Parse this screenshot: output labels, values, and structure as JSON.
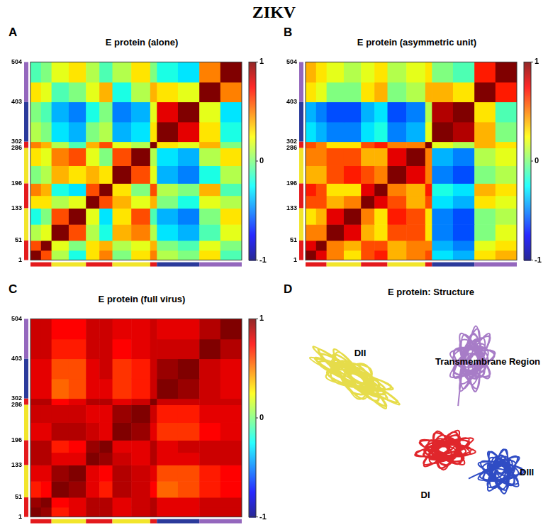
{
  "title": "ZIKV",
  "chart_data": [
    {
      "label": "A",
      "type": "heatmap",
      "title": "E protein (alone)",
      "bin_edges": [
        1,
        26,
        51,
        92,
        133,
        165,
        196,
        241,
        286,
        302,
        352,
        403,
        453,
        504
      ],
      "cells": [
        [
          1,
          0.6,
          0.1,
          -0.2,
          0.3,
          0.5,
          0.0,
          0.3,
          0.5,
          0.1,
          0.0,
          0.3,
          -0.1
        ],
        [
          0.6,
          1,
          0.2,
          0.0,
          0.3,
          0.4,
          0.1,
          0.2,
          0.4,
          0.0,
          -0.1,
          0.2,
          0.0
        ],
        [
          0.1,
          0.2,
          1,
          0.6,
          0.1,
          -0.2,
          0.4,
          0.5,
          0.1,
          -0.3,
          -0.4,
          -0.1,
          0.2
        ],
        [
          -0.2,
          0.0,
          0.6,
          1,
          0.2,
          -0.3,
          0.3,
          0.6,
          -0.1,
          -0.4,
          -0.5,
          0.0,
          0.3
        ],
        [
          0.3,
          0.3,
          0.1,
          0.2,
          1,
          0.6,
          0.4,
          0.2,
          0.4,
          0.0,
          -0.2,
          0.2,
          0.1
        ],
        [
          0.5,
          0.4,
          -0.2,
          -0.3,
          0.6,
          1,
          0.3,
          0.0,
          0.6,
          0.1,
          0.0,
          0.4,
          -0.1
        ],
        [
          0.0,
          0.1,
          0.4,
          0.3,
          0.4,
          0.3,
          1,
          0.6,
          0.2,
          -0.4,
          -0.5,
          -0.2,
          0.1
        ],
        [
          0.3,
          0.2,
          0.5,
          0.6,
          0.2,
          0.0,
          0.6,
          1,
          0.1,
          -0.3,
          -0.4,
          0.1,
          0.3
        ],
        [
          0.5,
          0.4,
          0.1,
          -0.1,
          0.4,
          0.6,
          0.2,
          0.1,
          1,
          0.3,
          0.2,
          0.4,
          0.0
        ],
        [
          0.1,
          0.0,
          -0.3,
          -0.4,
          0.0,
          0.1,
          -0.4,
          -0.3,
          0.3,
          1,
          0.8,
          0.3,
          -0.2
        ],
        [
          0.0,
          -0.1,
          -0.4,
          -0.5,
          -0.2,
          0.0,
          -0.5,
          -0.4,
          0.2,
          0.8,
          1,
          0.2,
          -0.3
        ],
        [
          0.3,
          0.2,
          -0.1,
          0.0,
          0.2,
          0.4,
          -0.2,
          0.1,
          0.4,
          0.3,
          0.2,
          1,
          0.5
        ],
        [
          -0.1,
          0.0,
          0.2,
          0.3,
          0.1,
          -0.1,
          0.1,
          0.3,
          0.0,
          -0.2,
          -0.3,
          0.5,
          1
        ]
      ],
      "xlim": [
        1,
        504
      ],
      "ylim": [
        1,
        504
      ],
      "yticks": [
        1,
        51,
        133,
        196,
        286,
        302,
        403,
        504
      ],
      "tick_labels": "y",
      "grid": false,
      "colorbar": {
        "range": [
          -1,
          1
        ],
        "ticks": [
          -1,
          0,
          1
        ]
      },
      "domains": [
        {
          "start": 1,
          "end": 51,
          "color": "#e41a1c"
        },
        {
          "start": 51,
          "end": 133,
          "color": "#f2e52b"
        },
        {
          "start": 133,
          "end": 196,
          "color": "#e41a1c"
        },
        {
          "start": 196,
          "end": 286,
          "color": "#f2e52b"
        },
        {
          "start": 286,
          "end": 302,
          "color": "#e41a1c"
        },
        {
          "start": 302,
          "end": 403,
          "color": "#2b3a9b"
        },
        {
          "start": 403,
          "end": 504,
          "color": "#9467bd"
        }
      ]
    },
    {
      "label": "B",
      "type": "heatmap",
      "title": "E protein (asymmetric unit)",
      "bin_edges": [
        1,
        26,
        51,
        92,
        133,
        165,
        196,
        241,
        286,
        302,
        352,
        403,
        453,
        504
      ],
      "cells": [
        [
          1,
          0.8,
          0.5,
          0.3,
          0.6,
          0.7,
          0.4,
          0.5,
          0.6,
          -0.3,
          -0.4,
          0.3,
          0.4
        ],
        [
          0.8,
          1,
          0.5,
          0.4,
          0.6,
          0.6,
          0.4,
          0.5,
          0.5,
          -0.4,
          -0.5,
          0.2,
          0.3
        ],
        [
          0.5,
          0.5,
          1,
          0.8,
          0.4,
          0.3,
          0.6,
          0.6,
          0.3,
          -0.5,
          -0.6,
          0.0,
          0.2
        ],
        [
          0.3,
          0.4,
          0.8,
          1,
          0.5,
          0.3,
          0.7,
          0.6,
          0.3,
          -0.5,
          -0.6,
          0.0,
          0.1
        ],
        [
          0.6,
          0.6,
          0.4,
          0.5,
          1,
          0.8,
          0.6,
          0.4,
          0.6,
          -0.3,
          -0.4,
          0.3,
          0.2
        ],
        [
          0.7,
          0.6,
          0.3,
          0.3,
          0.8,
          1,
          0.5,
          0.4,
          0.7,
          -0.2,
          -0.3,
          0.4,
          0.3
        ],
        [
          0.4,
          0.4,
          0.6,
          0.7,
          0.6,
          0.5,
          1,
          0.8,
          0.5,
          -0.5,
          -0.6,
          0.0,
          0.1
        ],
        [
          0.5,
          0.5,
          0.6,
          0.6,
          0.4,
          0.4,
          0.8,
          1,
          0.5,
          -0.4,
          -0.5,
          0.1,
          0.2
        ],
        [
          0.6,
          0.5,
          0.3,
          0.3,
          0.6,
          0.7,
          0.5,
          0.5,
          1,
          0.2,
          0.1,
          0.4,
          0.3
        ],
        [
          -0.3,
          -0.4,
          -0.5,
          -0.5,
          -0.3,
          -0.2,
          -0.5,
          -0.4,
          0.2,
          1,
          0.9,
          0.4,
          0.0
        ],
        [
          -0.4,
          -0.5,
          -0.6,
          -0.6,
          -0.4,
          -0.3,
          -0.6,
          -0.5,
          0.1,
          0.9,
          1,
          0.3,
          -0.1
        ],
        [
          0.3,
          0.2,
          0.0,
          0.0,
          0.3,
          0.4,
          0.0,
          0.1,
          0.4,
          0.4,
          0.3,
          1,
          0.7
        ],
        [
          0.4,
          0.3,
          0.2,
          0.1,
          0.2,
          0.3,
          0.1,
          0.2,
          0.3,
          0.0,
          -0.1,
          0.7,
          1
        ]
      ],
      "xlim": [
        1,
        504
      ],
      "ylim": [
        1,
        504
      ],
      "yticks": [
        1,
        51,
        133,
        196,
        286,
        302,
        403,
        504
      ],
      "tick_labels": "y",
      "grid": false,
      "colorbar": {
        "range": [
          -1,
          1
        ],
        "ticks": [
          -1,
          0,
          1
        ]
      },
      "domains": [
        {
          "start": 1,
          "end": 51,
          "color": "#e41a1c"
        },
        {
          "start": 51,
          "end": 133,
          "color": "#f2e52b"
        },
        {
          "start": 133,
          "end": 196,
          "color": "#e41a1c"
        },
        {
          "start": 196,
          "end": 286,
          "color": "#f2e52b"
        },
        {
          "start": 286,
          "end": 302,
          "color": "#e41a1c"
        },
        {
          "start": 302,
          "end": 403,
          "color": "#2b3a9b"
        },
        {
          "start": 403,
          "end": 504,
          "color": "#9467bd"
        }
      ]
    },
    {
      "label": "C",
      "type": "heatmap",
      "title": "E protein (full virus)",
      "bin_edges": [
        1,
        26,
        51,
        92,
        133,
        165,
        196,
        241,
        286,
        302,
        352,
        403,
        453,
        504
      ],
      "cells": [
        [
          1,
          0.95,
          0.7,
          0.8,
          0.9,
          0.9,
          0.8,
          0.85,
          0.9,
          0.8,
          0.8,
          0.85,
          0.85
        ],
        [
          0.95,
          1,
          0.75,
          0.8,
          0.9,
          0.9,
          0.8,
          0.85,
          0.9,
          0.8,
          0.8,
          0.85,
          0.85
        ],
        [
          0.7,
          0.75,
          1,
          0.95,
          0.8,
          0.7,
          0.9,
          0.85,
          0.75,
          0.55,
          0.6,
          0.7,
          0.75
        ],
        [
          0.8,
          0.8,
          0.95,
          1,
          0.8,
          0.75,
          0.9,
          0.85,
          0.8,
          0.6,
          0.6,
          0.7,
          0.75
        ],
        [
          0.9,
          0.9,
          0.8,
          0.8,
          1,
          0.95,
          0.85,
          0.8,
          0.9,
          0.8,
          0.8,
          0.85,
          0.85
        ],
        [
          0.9,
          0.9,
          0.7,
          0.75,
          0.95,
          1,
          0.8,
          0.8,
          0.9,
          0.8,
          0.85,
          0.85,
          0.85
        ],
        [
          0.8,
          0.8,
          0.9,
          0.9,
          0.85,
          0.8,
          1,
          0.95,
          0.8,
          0.65,
          0.65,
          0.75,
          0.8
        ],
        [
          0.85,
          0.85,
          0.85,
          0.85,
          0.8,
          0.8,
          0.95,
          1,
          0.85,
          0.7,
          0.7,
          0.8,
          0.8
        ],
        [
          0.9,
          0.9,
          0.75,
          0.8,
          0.9,
          0.9,
          0.8,
          0.85,
          1,
          0.85,
          0.85,
          0.85,
          0.85
        ],
        [
          0.8,
          0.8,
          0.55,
          0.6,
          0.8,
          0.8,
          0.65,
          0.7,
          0.85,
          1,
          0.95,
          0.85,
          0.8
        ],
        [
          0.8,
          0.8,
          0.6,
          0.6,
          0.8,
          0.85,
          0.65,
          0.7,
          0.85,
          0.95,
          1,
          0.85,
          0.8
        ],
        [
          0.85,
          0.85,
          0.7,
          0.7,
          0.85,
          0.85,
          0.75,
          0.8,
          0.85,
          0.85,
          0.85,
          1,
          0.9
        ],
        [
          0.85,
          0.85,
          0.75,
          0.75,
          0.85,
          0.85,
          0.8,
          0.8,
          0.85,
          0.8,
          0.8,
          0.9,
          1
        ]
      ],
      "xlim": [
        1,
        504
      ],
      "ylim": [
        1,
        504
      ],
      "yticks": [
        1,
        51,
        133,
        196,
        286,
        302,
        403,
        504
      ],
      "tick_labels": "y",
      "grid": false,
      "colorbar": {
        "range": [
          -1,
          1
        ],
        "ticks": [
          -1,
          0,
          1
        ]
      },
      "domains": [
        {
          "start": 1,
          "end": 51,
          "color": "#e41a1c"
        },
        {
          "start": 51,
          "end": 133,
          "color": "#f2e52b"
        },
        {
          "start": 133,
          "end": 196,
          "color": "#e41a1c"
        },
        {
          "start": 196,
          "end": 286,
          "color": "#f2e52b"
        },
        {
          "start": 286,
          "end": 302,
          "color": "#e41a1c"
        },
        {
          "start": 302,
          "end": 403,
          "color": "#2b3a9b"
        },
        {
          "start": 403,
          "end": 504,
          "color": "#9467bd"
        }
      ]
    }
  ],
  "structure": {
    "label": "D",
    "title": "E protein: Structure",
    "regions": [
      {
        "name": "DII",
        "color": "#e6dc4a"
      },
      {
        "name": "Transmembrane Region",
        "color": "#a77cc7"
      },
      {
        "name": "DIII",
        "color": "#2f4cc4"
      },
      {
        "name": "DI",
        "color": "#e0262b"
      }
    ]
  }
}
